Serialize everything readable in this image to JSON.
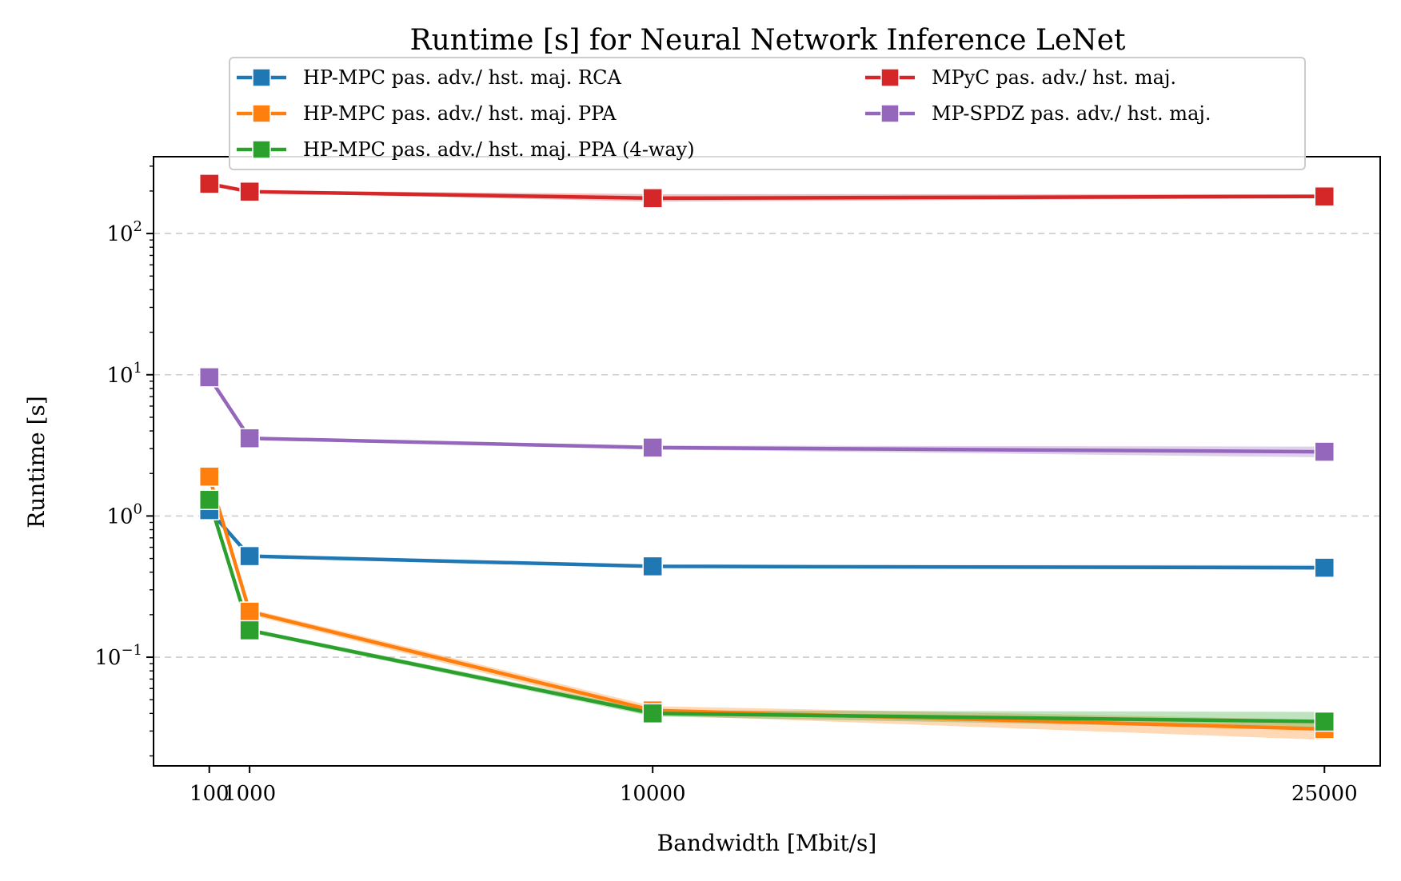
{
  "chart_data": {
    "type": "line",
    "title": "Runtime [s] for Neural Network Inference LeNet",
    "xlabel": "Bandwidth [Mbit/s]",
    "ylabel": "Runtime [s]",
    "x": [
      100,
      1000,
      10000,
      25000
    ],
    "x_tick_labels": [
      "100",
      "1000",
      "10000",
      "25000"
    ],
    "y_scale": "log",
    "ylim": [
      0.017,
      350
    ],
    "xlim": [
      -1145,
      26245
    ],
    "y_ticks": [
      {
        "value": 0.1,
        "base": "10",
        "exp": "−1"
      },
      {
        "value": 1,
        "base": "10",
        "exp": "0"
      },
      {
        "value": 10,
        "base": "10",
        "exp": "1"
      },
      {
        "value": 100,
        "base": "10",
        "exp": "2"
      }
    ],
    "grid": "horizontal dashed",
    "legend_position": "top-center",
    "series": [
      {
        "name": "HP-MPC pas. adv./ hst. maj. RCA",
        "color": "#1f77b4",
        "values": [
          1.1,
          0.52,
          0.44,
          0.43
        ],
        "band_lo": [
          1.1,
          0.52,
          0.43,
          0.42
        ],
        "band_hi": [
          1.1,
          0.53,
          0.45,
          0.45
        ]
      },
      {
        "name": "HP-MPC pas. adv./ hst. maj. PPA",
        "color": "#ff7f0e",
        "values": [
          1.9,
          0.21,
          0.042,
          0.031
        ],
        "band_lo": [
          1.9,
          0.2,
          0.039,
          0.026
        ],
        "band_hi": [
          1.9,
          0.22,
          0.045,
          0.036
        ]
      },
      {
        "name": "HP-MPC pas. adv./ hst. maj. PPA (4-way)",
        "color": "#2ca02c",
        "values": [
          1.3,
          0.155,
          0.04,
          0.035
        ],
        "band_lo": [
          1.3,
          0.15,
          0.038,
          0.031
        ],
        "band_hi": [
          1.3,
          0.16,
          0.042,
          0.041
        ]
      },
      {
        "name": "MPyC pas. adv./ hst. maj.",
        "color": "#d62728",
        "values": [
          225,
          198,
          178,
          183
        ],
        "band_lo": [
          225,
          195,
          168,
          178
        ],
        "band_hi": [
          225,
          202,
          190,
          190
        ]
      },
      {
        "name": "MP-SPDZ pas. adv./ hst. maj.",
        "color": "#9467bd",
        "values": [
          9.6,
          3.55,
          3.05,
          2.85
        ],
        "band_lo": [
          9.6,
          3.5,
          2.95,
          2.6
        ],
        "band_hi": [
          9.6,
          3.6,
          3.15,
          3.1
        ]
      }
    ]
  }
}
